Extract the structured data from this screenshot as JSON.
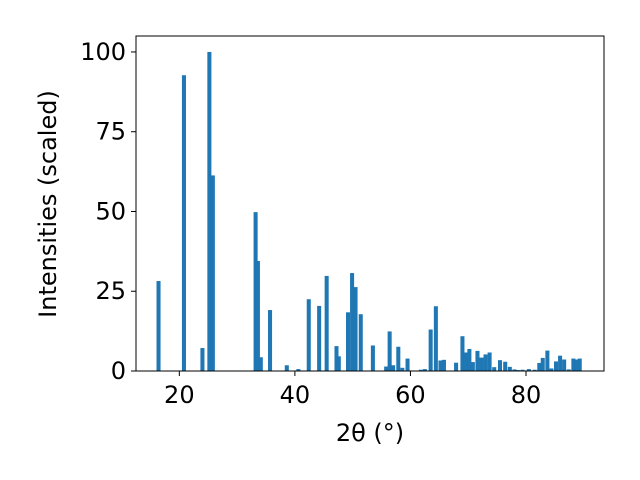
{
  "chart_data": {
    "type": "bar",
    "xlabel": "2θ (°)",
    "ylabel": "Intensities (scaled)",
    "xlim": [
      12.5,
      93.5
    ],
    "ylim": [
      0,
      105
    ],
    "xticks": [
      "20",
      "40",
      "60",
      "80"
    ],
    "yticks": [
      "0",
      "25",
      "50",
      "75",
      "100"
    ],
    "bar_color": "#1f77b4",
    "bar_width": 0.7,
    "x": [
      16.4,
      20.8,
      24.0,
      25.2,
      25.8,
      33.2,
      33.6,
      34.1,
      35.7,
      38.6,
      40.6,
      42.4,
      44.2,
      45.5,
      47.2,
      47.6,
      49.2,
      49.9,
      50.5,
      51.4,
      53.5,
      55.8,
      56.4,
      57.0,
      57.9,
      58.6,
      59.5,
      61.8,
      62.5,
      63.5,
      64.4,
      65.2,
      65.8,
      67.9,
      69.0,
      69.6,
      70.2,
      70.8,
      71.6,
      72.3,
      73.0,
      73.7,
      74.5,
      75.5,
      76.4,
      77.2,
      78.0,
      78.6,
      79.4,
      80.5,
      81.5,
      82.3,
      82.9,
      83.7,
      84.4,
      85.2,
      85.9,
      86.6,
      87.4,
      88.2,
      88.7,
      89.3
    ],
    "values": [
      28.2,
      92.7,
      7.2,
      100.0,
      61.3,
      49.8,
      34.5,
      4.3,
      19.1,
      1.8,
      0.6,
      22.5,
      20.4,
      29.8,
      7.8,
      4.6,
      18.4,
      30.7,
      26.3,
      17.8,
      8.0,
      1.4,
      12.4,
      1.8,
      7.6,
      1.0,
      3.9,
      0.4,
      0.6,
      13.0,
      20.3,
      3.3,
      3.5,
      2.6,
      10.9,
      5.8,
      6.9,
      2.8,
      6.3,
      4.2,
      5.2,
      5.8,
      1.2,
      3.4,
      2.9,
      1.3,
      0.5,
      0.3,
      0.4,
      0.6,
      0.4,
      2.5,
      4.1,
      6.4,
      0.8,
      3.0,
      4.8,
      3.6,
      0.5,
      3.9,
      3.6,
      3.9
    ]
  }
}
